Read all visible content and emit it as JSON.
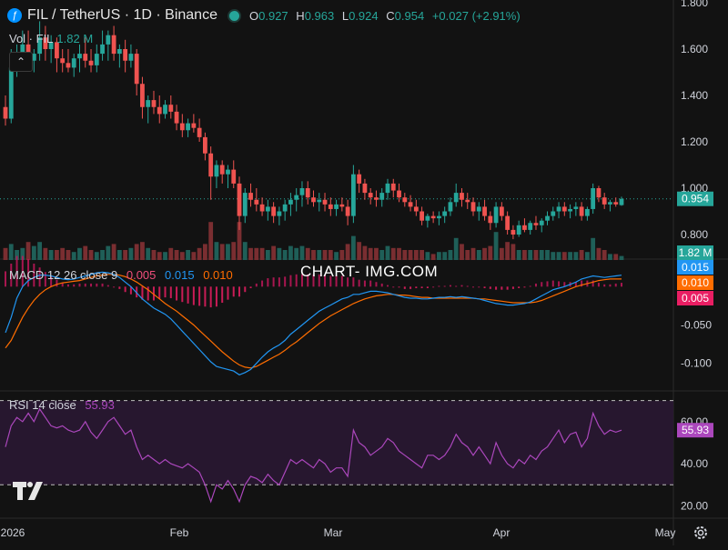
{
  "header": {
    "symbol_title": "FIL / TetherUS · 1D · Binance",
    "ohlc": [
      {
        "k": "O",
        "v": "0.927"
      },
      {
        "k": "H",
        "v": "0.963"
      },
      {
        "k": "L",
        "v": "0.924"
      },
      {
        "k": "C",
        "v": "0.954"
      },
      {
        "k": "",
        "v": "+0.027 (+2.91%)"
      }
    ],
    "vol_label": "Vol · FIL",
    "vol_value": "1.82 M",
    "macd_label": "MACD 12 26 close 9",
    "macd_values": [
      "0.005",
      "0.015",
      "0.010"
    ],
    "rsi_label": "RSI 14 close",
    "rsi_value": "55.93",
    "watermark": "CHART- IMG.COM",
    "collapse_icon": "chevron-up-icon",
    "colors": {
      "up": "#26a69a",
      "down": "#ef5350",
      "macd": "#2196f3",
      "signal": "#ff6d00",
      "rsi": "#ab47bc"
    }
  },
  "chart_data": [
    {
      "type": "candlestick",
      "title": "FIL / TetherUS · 1D · Binance",
      "y_ticks": [
        "1.800",
        "1.600",
        "1.400",
        "1.200",
        "1.000",
        "0.800"
      ],
      "ylim": [
        0.7,
        1.8
      ],
      "last_price_label": "0.954",
      "volume_label": "1.82 M",
      "x_ticks": [
        "2026",
        "Feb",
        "Mar",
        "Apr",
        "May"
      ],
      "candles": [
        [
          1.35,
          1.4,
          1.27,
          1.3
        ],
        [
          1.3,
          1.6,
          1.28,
          1.52
        ],
        [
          1.52,
          1.62,
          1.48,
          1.55
        ],
        [
          1.55,
          1.68,
          1.52,
          1.62
        ],
        [
          1.62,
          1.68,
          1.52,
          1.55
        ],
        [
          1.55,
          1.6,
          1.5,
          1.58
        ],
        [
          1.58,
          1.72,
          1.55,
          1.65
        ],
        [
          1.65,
          1.7,
          1.55,
          1.6
        ],
        [
          1.6,
          1.66,
          1.54,
          1.63
        ],
        [
          1.63,
          1.65,
          1.5,
          1.56
        ],
        [
          1.56,
          1.6,
          1.5,
          1.54
        ],
        [
          1.54,
          1.6,
          1.5,
          1.52
        ],
        [
          1.52,
          1.58,
          1.48,
          1.56
        ],
        [
          1.56,
          1.62,
          1.5,
          1.58
        ],
        [
          1.58,
          1.65,
          1.52,
          1.55
        ],
        [
          1.55,
          1.6,
          1.5,
          1.53
        ],
        [
          1.53,
          1.62,
          1.5,
          1.58
        ],
        [
          1.58,
          1.68,
          1.55,
          1.62
        ],
        [
          1.62,
          1.68,
          1.55,
          1.66
        ],
        [
          1.66,
          1.7,
          1.55,
          1.58
        ],
        [
          1.58,
          1.62,
          1.52,
          1.6
        ],
        [
          1.6,
          1.64,
          1.5,
          1.55
        ],
        [
          1.55,
          1.62,
          1.52,
          1.58
        ],
        [
          1.58,
          1.6,
          1.4,
          1.45
        ],
        [
          1.45,
          1.48,
          1.3,
          1.35
        ],
        [
          1.35,
          1.4,
          1.28,
          1.38
        ],
        [
          1.38,
          1.42,
          1.32,
          1.35
        ],
        [
          1.35,
          1.4,
          1.28,
          1.32
        ],
        [
          1.32,
          1.38,
          1.3,
          1.36
        ],
        [
          1.36,
          1.4,
          1.3,
          1.33
        ],
        [
          1.33,
          1.36,
          1.25,
          1.28
        ],
        [
          1.28,
          1.32,
          1.22,
          1.25
        ],
        [
          1.25,
          1.3,
          1.22,
          1.28
        ],
        [
          1.28,
          1.32,
          1.24,
          1.26
        ],
        [
          1.26,
          1.3,
          1.2,
          1.22
        ],
        [
          1.22,
          1.24,
          1.12,
          1.15
        ],
        [
          1.15,
          1.18,
          0.95,
          1.05
        ],
        [
          1.05,
          1.12,
          1.0,
          1.1
        ],
        [
          1.1,
          1.12,
          1.02,
          1.06
        ],
        [
          1.06,
          1.1,
          1.0,
          1.08
        ],
        [
          1.08,
          1.12,
          1.0,
          1.02
        ],
        [
          1.02,
          1.05,
          0.82,
          0.88
        ],
        [
          0.88,
          1.0,
          0.85,
          0.98
        ],
        [
          0.98,
          1.02,
          0.92,
          0.95
        ],
        [
          0.95,
          1.0,
          0.9,
          0.93
        ],
        [
          0.93,
          0.96,
          0.88,
          0.9
        ],
        [
          0.9,
          0.95,
          0.86,
          0.92
        ],
        [
          0.92,
          0.94,
          0.85,
          0.88
        ],
        [
          0.88,
          0.92,
          0.84,
          0.9
        ],
        [
          0.9,
          0.95,
          0.86,
          0.93
        ],
        [
          0.93,
          0.98,
          0.88,
          0.95
        ],
        [
          0.95,
          1.0,
          0.9,
          0.97
        ],
        [
          0.97,
          1.03,
          0.92,
          1.0
        ],
        [
          1.0,
          1.03,
          0.93,
          0.96
        ],
        [
          0.96,
          0.99,
          0.92,
          0.94
        ],
        [
          0.94,
          0.98,
          0.9,
          0.95
        ],
        [
          0.95,
          0.98,
          0.9,
          0.93
        ],
        [
          0.93,
          0.96,
          0.88,
          0.91
        ],
        [
          0.91,
          0.95,
          0.88,
          0.93
        ],
        [
          0.93,
          0.96,
          0.9,
          0.92
        ],
        [
          0.92,
          0.95,
          0.84,
          0.88
        ],
        [
          0.88,
          1.1,
          0.85,
          1.06
        ],
        [
          1.06,
          1.08,
          0.98,
          1.02
        ],
        [
          1.02,
          1.04,
          0.95,
          0.98
        ],
        [
          0.98,
          1.0,
          0.93,
          0.96
        ],
        [
          0.96,
          0.99,
          0.92,
          0.95
        ],
        [
          0.95,
          1.0,
          0.92,
          0.98
        ],
        [
          0.98,
          1.04,
          0.95,
          1.02
        ],
        [
          1.02,
          1.04,
          0.96,
          0.99
        ],
        [
          0.99,
          1.02,
          0.94,
          0.96
        ],
        [
          0.96,
          0.98,
          0.92,
          0.94
        ],
        [
          0.94,
          0.97,
          0.9,
          0.92
        ],
        [
          0.92,
          0.95,
          0.88,
          0.9
        ],
        [
          0.9,
          0.92,
          0.84,
          0.86
        ],
        [
          0.86,
          0.89,
          0.83,
          0.88
        ],
        [
          0.88,
          0.9,
          0.85,
          0.87
        ],
        [
          0.87,
          0.9,
          0.84,
          0.88
        ],
        [
          0.88,
          0.92,
          0.85,
          0.9
        ],
        [
          0.9,
          0.96,
          0.88,
          0.94
        ],
        [
          0.94,
          1.02,
          0.92,
          0.98
        ],
        [
          0.98,
          1.0,
          0.92,
          0.95
        ],
        [
          0.95,
          0.98,
          0.91,
          0.94
        ],
        [
          0.94,
          0.96,
          0.88,
          0.9
        ],
        [
          0.9,
          0.94,
          0.86,
          0.92
        ],
        [
          0.92,
          0.95,
          0.86,
          0.88
        ],
        [
          0.88,
          0.9,
          0.82,
          0.85
        ],
        [
          0.85,
          0.94,
          0.83,
          0.92
        ],
        [
          0.92,
          0.94,
          0.86,
          0.88
        ],
        [
          0.88,
          0.9,
          0.8,
          0.82
        ],
        [
          0.82,
          0.84,
          0.78,
          0.8
        ],
        [
          0.8,
          0.86,
          0.79,
          0.84
        ],
        [
          0.84,
          0.87,
          0.81,
          0.82
        ],
        [
          0.82,
          0.86,
          0.8,
          0.85
        ],
        [
          0.85,
          0.88,
          0.82,
          0.84
        ],
        [
          0.84,
          0.87,
          0.81,
          0.86
        ],
        [
          0.86,
          0.9,
          0.84,
          0.88
        ],
        [
          0.88,
          0.92,
          0.86,
          0.9
        ],
        [
          0.9,
          0.94,
          0.87,
          0.92
        ],
        [
          0.92,
          0.94,
          0.88,
          0.9
        ],
        [
          0.9,
          0.93,
          0.87,
          0.91
        ],
        [
          0.91,
          0.94,
          0.88,
          0.92
        ],
        [
          0.92,
          0.94,
          0.86,
          0.88
        ],
        [
          0.88,
          0.92,
          0.86,
          0.91
        ],
        [
          0.91,
          1.02,
          0.89,
          1.0
        ],
        [
          1.0,
          1.01,
          0.94,
          0.96
        ],
        [
          0.96,
          0.98,
          0.91,
          0.93
        ],
        [
          0.93,
          0.95,
          0.9,
          0.94
        ],
        [
          0.94,
          0.96,
          0.92,
          0.93
        ],
        [
          0.927,
          0.963,
          0.924,
          0.954
        ]
      ],
      "volumes": [
        0.6,
        0.8,
        0.5,
        0.6,
        0.9,
        0.7,
        0.9,
        0.6,
        0.5,
        0.5,
        0.6,
        0.5,
        0.4,
        0.6,
        0.7,
        0.5,
        0.4,
        0.5,
        0.7,
        0.8,
        0.5,
        0.5,
        0.6,
        0.8,
        0.9,
        0.6,
        0.5,
        0.4,
        0.4,
        0.6,
        0.5,
        0.4,
        0.5,
        0.4,
        0.6,
        0.8,
        1.9,
        0.9,
        0.8,
        0.8,
        0.9,
        1.9,
        0.9,
        0.6,
        0.6,
        0.6,
        0.5,
        0.7,
        0.6,
        0.5,
        0.7,
        0.6,
        0.7,
        0.6,
        0.5,
        0.5,
        0.5,
        0.5,
        0.4,
        0.5,
        0.8,
        1.2,
        0.9,
        0.7,
        0.6,
        0.6,
        0.5,
        0.7,
        0.6,
        0.6,
        0.5,
        0.5,
        0.5,
        0.5,
        0.4,
        0.3,
        0.4,
        0.4,
        0.5,
        1.1,
        0.8,
        0.5,
        0.6,
        0.5,
        0.6,
        0.7,
        1.4,
        0.6,
        0.9,
        0.8,
        0.5,
        0.5,
        0.5,
        0.5,
        0.5,
        0.5,
        0.4,
        0.4,
        0.4,
        0.4,
        0.4,
        0.5,
        0.4,
        1.1,
        0.6,
        0.5,
        0.3,
        0.3,
        0.2
      ]
    },
    {
      "type": "line",
      "title": "MACD 12 26 close 9",
      "y_ticks": [
        "-0.050",
        "-0.100"
      ],
      "ylim": [
        -0.13,
        0.03
      ],
      "value_labels": [
        "0.015",
        "0.010",
        "0.005"
      ],
      "series": [
        {
          "name": "MACD",
          "values": [
            -0.06,
            -0.04,
            -0.015,
            0.0,
            0.008,
            0.012,
            0.015,
            0.015,
            0.014,
            0.012,
            0.01,
            0.009,
            0.01,
            0.012,
            0.014,
            0.016,
            0.018,
            0.019,
            0.018,
            0.016,
            0.012,
            0.006,
            0.0,
            -0.008,
            -0.016,
            -0.022,
            -0.028,
            -0.032,
            -0.036,
            -0.042,
            -0.05,
            -0.058,
            -0.066,
            -0.074,
            -0.082,
            -0.09,
            -0.098,
            -0.104,
            -0.106,
            -0.108,
            -0.11,
            -0.115,
            -0.112,
            -0.108,
            -0.1,
            -0.092,
            -0.085,
            -0.08,
            -0.076,
            -0.07,
            -0.062,
            -0.056,
            -0.05,
            -0.044,
            -0.038,
            -0.032,
            -0.028,
            -0.024,
            -0.02,
            -0.016,
            -0.014,
            -0.01,
            -0.01,
            -0.008,
            -0.006,
            -0.006,
            -0.007,
            -0.008,
            -0.01,
            -0.012,
            -0.014,
            -0.015,
            -0.015,
            -0.016,
            -0.016,
            -0.015,
            -0.014,
            -0.014,
            -0.013,
            -0.014,
            -0.013,
            -0.014,
            -0.015,
            -0.016,
            -0.018,
            -0.02,
            -0.022,
            -0.023,
            -0.024,
            -0.024,
            -0.023,
            -0.022,
            -0.02,
            -0.016,
            -0.012,
            -0.008,
            -0.004,
            -0.002,
            0.0,
            0.003,
            0.006,
            0.01,
            0.012,
            0.014,
            0.013,
            0.012,
            0.013,
            0.014,
            0.015
          ]
        },
        {
          "name": "Signal",
          "values": [
            -0.08,
            -0.07,
            -0.055,
            -0.04,
            -0.028,
            -0.018,
            -0.01,
            -0.004,
            0.0,
            0.003,
            0.005,
            0.006,
            0.007,
            0.008,
            0.01,
            0.012,
            0.014,
            0.015,
            0.016,
            0.016,
            0.015,
            0.013,
            0.01,
            0.006,
            0.001,
            -0.004,
            -0.01,
            -0.016,
            -0.022,
            -0.027,
            -0.032,
            -0.038,
            -0.044,
            -0.05,
            -0.057,
            -0.064,
            -0.071,
            -0.078,
            -0.085,
            -0.091,
            -0.097,
            -0.102,
            -0.105,
            -0.106,
            -0.104,
            -0.1,
            -0.096,
            -0.092,
            -0.088,
            -0.083,
            -0.077,
            -0.072,
            -0.066,
            -0.06,
            -0.054,
            -0.048,
            -0.043,
            -0.038,
            -0.034,
            -0.03,
            -0.026,
            -0.022,
            -0.019,
            -0.016,
            -0.014,
            -0.012,
            -0.011,
            -0.01,
            -0.01,
            -0.011,
            -0.011,
            -0.012,
            -0.013,
            -0.014,
            -0.014,
            -0.015,
            -0.015,
            -0.015,
            -0.015,
            -0.015,
            -0.015,
            -0.015,
            -0.015,
            -0.016,
            -0.016,
            -0.017,
            -0.018,
            -0.019,
            -0.02,
            -0.021,
            -0.021,
            -0.021,
            -0.021,
            -0.02,
            -0.018,
            -0.015,
            -0.012,
            -0.009,
            -0.006,
            -0.003,
            0.0,
            0.002,
            0.004,
            0.006,
            0.008,
            0.009,
            0.01,
            0.01,
            0.01
          ]
        }
      ]
    },
    {
      "type": "line",
      "title": "RSI 14 close",
      "y_ticks": [
        "60.00",
        "40.00",
        "20.00"
      ],
      "ylim": [
        15,
        72
      ],
      "bands": [
        70,
        30
      ],
      "value_label": "55.93",
      "series": [
        {
          "name": "RSI",
          "values": [
            48,
            58,
            62,
            60,
            64,
            60,
            66,
            62,
            58,
            57,
            58,
            56,
            55,
            56,
            60,
            55,
            52,
            56,
            60,
            62,
            58,
            54,
            56,
            48,
            42,
            44,
            42,
            40,
            42,
            40,
            39,
            38,
            40,
            38,
            36,
            30,
            22,
            30,
            28,
            32,
            28,
            22,
            30,
            34,
            33,
            31,
            35,
            32,
            30,
            36,
            42,
            40,
            42,
            40,
            38,
            42,
            40,
            36,
            38,
            38,
            34,
            56,
            50,
            48,
            44,
            46,
            48,
            52,
            50,
            46,
            44,
            42,
            40,
            38,
            44,
            44,
            42,
            44,
            48,
            54,
            50,
            48,
            44,
            48,
            44,
            40,
            50,
            44,
            40,
            38,
            42,
            40,
            44,
            42,
            46,
            48,
            52,
            56,
            50,
            54,
            55,
            48,
            52,
            64,
            58,
            54,
            56,
            55,
            55.93
          ]
        }
      ]
    }
  ],
  "x_axis": {
    "labels": [
      "2026",
      "Feb",
      "Mar",
      "Apr",
      "May"
    ]
  },
  "icons": {
    "logo": "tradingview-logo-icon",
    "settings": "gear-icon",
    "symbol": "filecoin-icon"
  }
}
